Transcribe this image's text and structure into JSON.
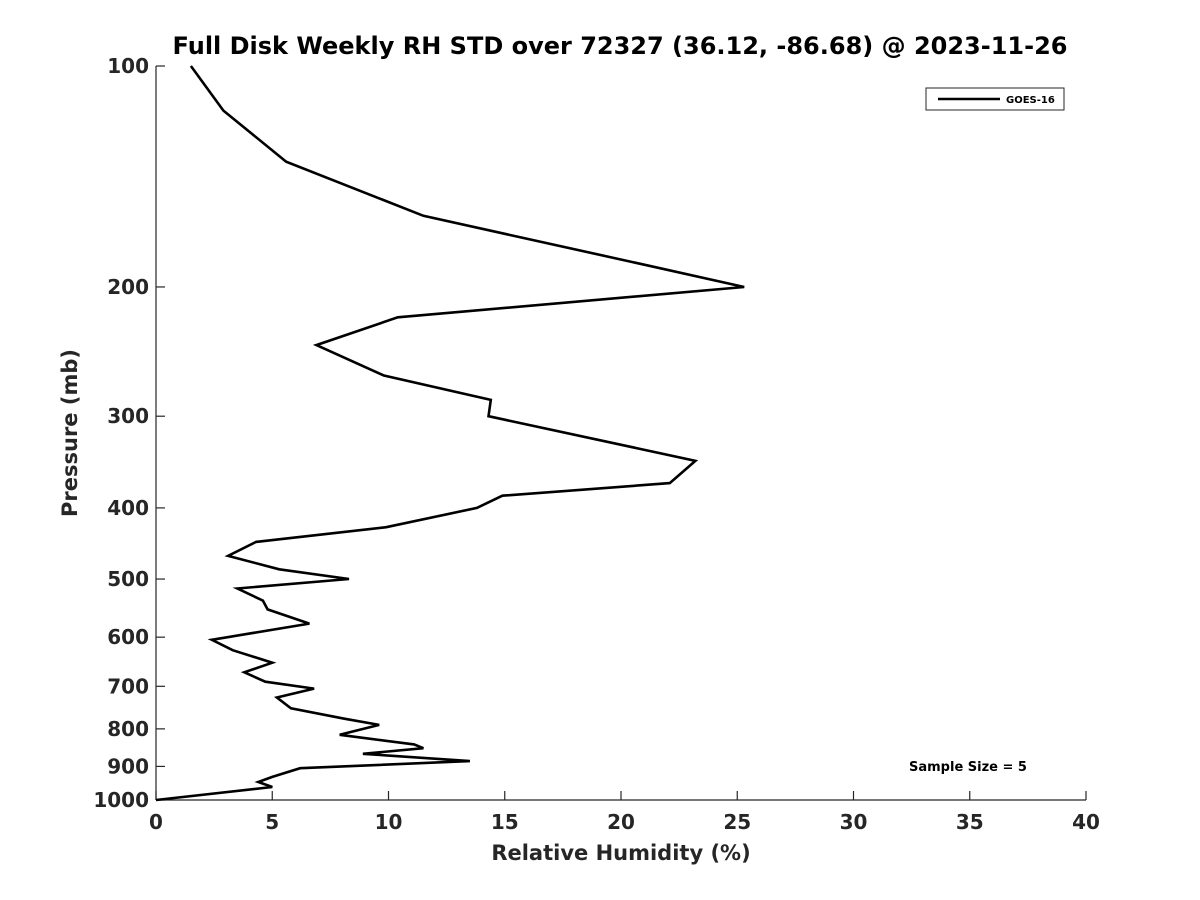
{
  "chart_data": {
    "type": "line",
    "title": "Full Disk Weekly RH STD over 72327 (36.12, -86.68) @ 2023-11-26",
    "xlabel": "Relative Humidity (%)",
    "ylabel": "Pressure (mb)",
    "xlim": [
      0,
      40
    ],
    "ylim": [
      100,
      1000
    ],
    "yscale": "log",
    "xticks": [
      "0",
      "5",
      "10",
      "15",
      "20",
      "25",
      "30",
      "35",
      "40"
    ],
    "yticks": [
      "100",
      "200",
      "300",
      "400",
      "500",
      "600",
      "700",
      "800",
      "900",
      "1000"
    ],
    "grid": false,
    "legend": {
      "position": "top-right",
      "entries": [
        "GOES-16"
      ]
    },
    "annotation": "Sample Size = 5",
    "series": [
      {
        "name": "GOES-16",
        "color": "#000000",
        "x": [
          1.5,
          2.9,
          5.6,
          11.5,
          20.5,
          25.3,
          10.4,
          6.9,
          9.8,
          14.4,
          14.3,
          23.2,
          22.1,
          14.9,
          13.8,
          9.9,
          4.3,
          3.1,
          5.3,
          8.3,
          3.5,
          4.6,
          4.8,
          6.6,
          2.4,
          3.3,
          5.0,
          3.8,
          4.7,
          6.8,
          5.2,
          5.8,
          8.1,
          9.6,
          7.9,
          11.1,
          11.5,
          8.9,
          13.5,
          6.2,
          5.0,
          4.4,
          5.0,
          0.0
        ],
        "y": [
          100,
          115,
          135,
          160,
          185,
          200,
          220,
          240,
          264,
          285,
          300,
          345,
          370,
          385,
          400,
          425,
          445,
          465,
          485,
          500,
          515,
          535,
          550,
          575,
          605,
          625,
          650,
          670,
          690,
          705,
          725,
          750,
          775,
          790,
          815,
          840,
          850,
          865,
          885,
          905,
          930,
          945,
          960,
          1000
        ]
      }
    ]
  }
}
